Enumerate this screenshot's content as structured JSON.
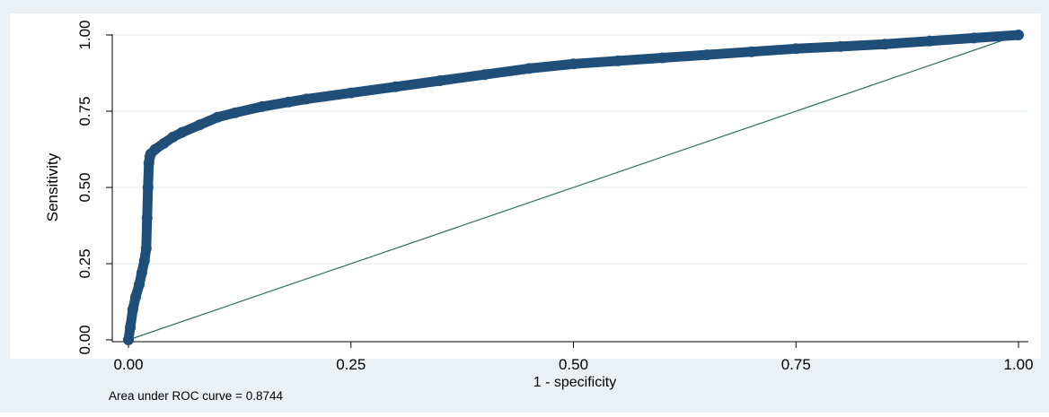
{
  "chart_data": {
    "type": "line",
    "xlabel": "1 - specificity",
    "ylabel": "Sensitivity",
    "xlim": [
      0,
      1
    ],
    "ylim": [
      0,
      1
    ],
    "x_ticks": [
      0.0,
      0.25,
      0.5,
      0.75,
      1.0
    ],
    "x_tick_labels": [
      "0.00",
      "0.25",
      "0.50",
      "0.75",
      "1.00"
    ],
    "y_ticks": [
      0.0,
      0.25,
      0.5,
      0.75,
      1.0
    ],
    "y_tick_labels": [
      "0.00",
      "0.25",
      "0.50",
      "0.75",
      "1.00"
    ],
    "grid": true,
    "legend": "none",
    "note": "Area under ROC curve = 0.8744",
    "series": [
      {
        "color": "#1f4e79",
        "x": [
          0.0,
          0.002,
          0.005,
          0.008,
          0.012,
          0.015,
          0.018,
          0.02,
          0.021,
          0.022,
          0.023,
          0.024,
          0.025,
          0.03,
          0.04,
          0.05,
          0.06,
          0.08,
          0.1,
          0.12,
          0.15,
          0.18,
          0.2,
          0.25,
          0.3,
          0.35,
          0.4,
          0.45,
          0.5,
          0.55,
          0.6,
          0.65,
          0.7,
          0.75,
          0.8,
          0.85,
          0.9,
          0.95,
          1.0
        ],
        "y": [
          0.0,
          0.04,
          0.1,
          0.14,
          0.18,
          0.22,
          0.26,
          0.3,
          0.4,
          0.5,
          0.58,
          0.6,
          0.61,
          0.625,
          0.645,
          0.665,
          0.68,
          0.705,
          0.73,
          0.745,
          0.765,
          0.78,
          0.79,
          0.81,
          0.83,
          0.85,
          0.87,
          0.89,
          0.905,
          0.915,
          0.925,
          0.935,
          0.945,
          0.955,
          0.962,
          0.97,
          0.98,
          0.99,
          1.0
        ]
      },
      {
        "color": "#2e6e5a",
        "x": [
          0.0,
          1.0
        ],
        "y": [
          0.0,
          1.0
        ]
      }
    ]
  }
}
